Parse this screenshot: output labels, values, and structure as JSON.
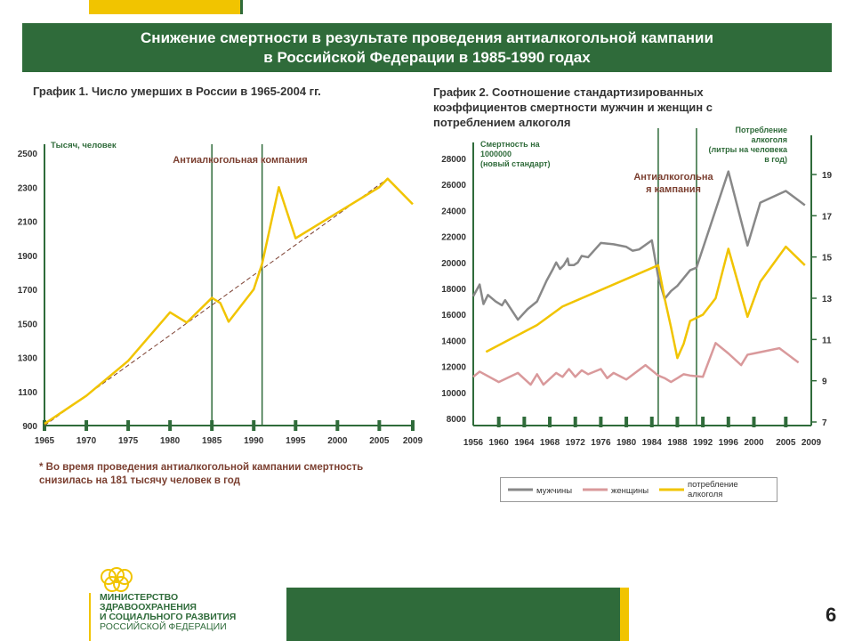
{
  "header": {
    "title_line1": "Снижение смертности в результате проведения антиалкогольной кампании",
    "title_line2": "в Российской Федерации в 1985-1990 годах"
  },
  "chart1": {
    "title": "График 1. Число умерших в России в 1965-2004 гг.",
    "unit_label": "Тысяч, человек",
    "annotation": "Антиалкогольная компания",
    "note": "* Во время проведения антиалкогольной кампании смертность снизилась на 181 тысячу человек в год"
  },
  "chart2": {
    "title_line1": "График 2. Соотношение стандартизированных",
    "title_line2": "коэффициентов смертности мужчин и женщин с",
    "title_line3": "потреблением алкоголя",
    "left_axis_label_1": "Смертность на",
    "left_axis_label_2": "1000000",
    "left_axis_label_3": "(новый стандарт)",
    "right_axis_label_1": "Потребление",
    "right_axis_label_2": "алкоголя",
    "right_axis_label_3": "(литры на человека",
    "right_axis_label_4": "в год)",
    "annotation_1": "Антиалкогольна",
    "annotation_2": "я кампания",
    "legend_men": "мужчины",
    "legend_women": "женщины",
    "legend_alcohol_1": "потребление",
    "legend_alcohol_2": "алкоголя"
  },
  "footer": {
    "ministry_1": "МИНИСТЕРСТВО",
    "ministry_2": "ЗДРАВООХРАНЕНИЯ",
    "ministry_3": "И СОЦИАЛЬНОГО РАЗВИТИЯ",
    "ministry_4": "РОССИЙСКОЙ ФЕДЕРАЦИИ",
    "page_number": "6"
  },
  "colors": {
    "green": "#2f6b3a",
    "yellow": "#f1c400",
    "gray": "#888888",
    "pink": "#d9999b",
    "red_text": "#7b3f30"
  },
  "chart_data": [
    {
      "type": "line",
      "title": "График 1. Число умерших в России в 1965-2004 гг.",
      "ylabel": "Тысяч, человек",
      "ylim": [
        900,
        2500
      ],
      "y_ticks": [
        900,
        1100,
        1300,
        1500,
        1700,
        1900,
        2100,
        2300,
        2500
      ],
      "x_ticks": [
        1965,
        1970,
        1975,
        1980,
        1985,
        1990,
        1995,
        2000,
        2005,
        2009
      ],
      "vlines": [
        1985,
        1991
      ],
      "series": [
        {
          "x": [
            1965,
            1970,
            1975,
            1980,
            1982,
            1985,
            1986,
            1987,
            1990,
            1991,
            1993,
            1995,
            2000,
            2005,
            2006,
            2009
          ],
          "values": [
            910,
            1075,
            1280,
            1565,
            1505,
            1650,
            1620,
            1510,
            1700,
            1850,
            2300,
            2000,
            2150,
            2300,
            2350,
            2200
          ]
        },
        {
          "x": [
            1965,
            2006
          ],
          "values": [
            900,
            2350
          ]
        }
      ]
    },
    {
      "type": "line",
      "title": "График 2. Соотношение стандартизированных коэффициентов смертности мужчин и женщин с потреблением алкоголя",
      "left_ylim": [
        8000,
        28000
      ],
      "left_y_ticks": [
        8000,
        10000,
        12000,
        14000,
        16000,
        18000,
        20000,
        22000,
        24000,
        26000,
        28000
      ],
      "right_ylim": [
        7,
        19
      ],
      "right_y_ticks": [
        7,
        9,
        11,
        13,
        15,
        17,
        19
      ],
      "x_ticks": [
        1956,
        1960,
        1964,
        1968,
        1972,
        1976,
        1980,
        1984,
        1988,
        1992,
        1996,
        2000,
        2005,
        2009
      ],
      "vlines": [
        1985,
        1991
      ],
      "series": [
        {
          "name": "мужчины",
          "axis": "left",
          "x": [
            1956,
            1957,
            1957.6,
            1958.3,
            1959.5,
            1960.5,
            1961,
            1963,
            1964.5,
            1966,
            1967.5,
            1968.5,
            1969,
            1969.6,
            1970.2,
            1970.8,
            1971,
            1971.8,
            1972.4,
            1973,
            1974,
            1976,
            1978,
            1980,
            1981,
            1982,
            1984,
            1985,
            1986,
            1987,
            1988,
            1990,
            1991,
            1996,
            1999,
            2001,
            2005,
            2008
          ],
          "values": [
            17400,
            18300,
            16800,
            17500,
            17000,
            16700,
            17100,
            15600,
            16400,
            17000,
            18600,
            19500,
            20000,
            19500,
            19800,
            20300,
            19800,
            19800,
            20000,
            20500,
            20400,
            21500,
            21400,
            21200,
            20900,
            21000,
            21700,
            18900,
            17200,
            17800,
            18200,
            19400,
            19600,
            27000,
            21300,
            24600,
            25500,
            24400
          ]
        },
        {
          "name": "женщины",
          "axis": "left",
          "x": [
            1956,
            1957,
            1960,
            1963,
            1965,
            1966,
            1967,
            1969,
            1970,
            1971,
            1972,
            1973,
            1974,
            1976,
            1977,
            1978,
            1980,
            1983,
            1985,
            1986,
            1987,
            1989,
            1990,
            1992,
            1994,
            1996,
            1998,
            1999,
            2000,
            2004,
            2007
          ],
          "values": [
            11200,
            11600,
            10800,
            11500,
            10600,
            11400,
            10600,
            11500,
            11200,
            11800,
            11200,
            11700,
            11400,
            11800,
            11100,
            11500,
            11000,
            12100,
            11300,
            11100,
            10800,
            11400,
            11300,
            11200,
            13800,
            13000,
            12100,
            12900,
            13000,
            13400,
            12300
          ]
        },
        {
          "name": "потребление алкоголя",
          "axis": "right",
          "x": [
            1958,
            1966,
            1970,
            1985,
            1986,
            1987,
            1988,
            1989,
            1990,
            1992,
            1994,
            1996,
            1999,
            2001,
            2005,
            2008
          ],
          "values": [
            10.4,
            11.7,
            12.6,
            14.6,
            13.0,
            11.6,
            10.1,
            10.8,
            11.9,
            12.2,
            13.0,
            15.4,
            12.1,
            13.8,
            15.5,
            14.6
          ]
        }
      ]
    }
  ]
}
